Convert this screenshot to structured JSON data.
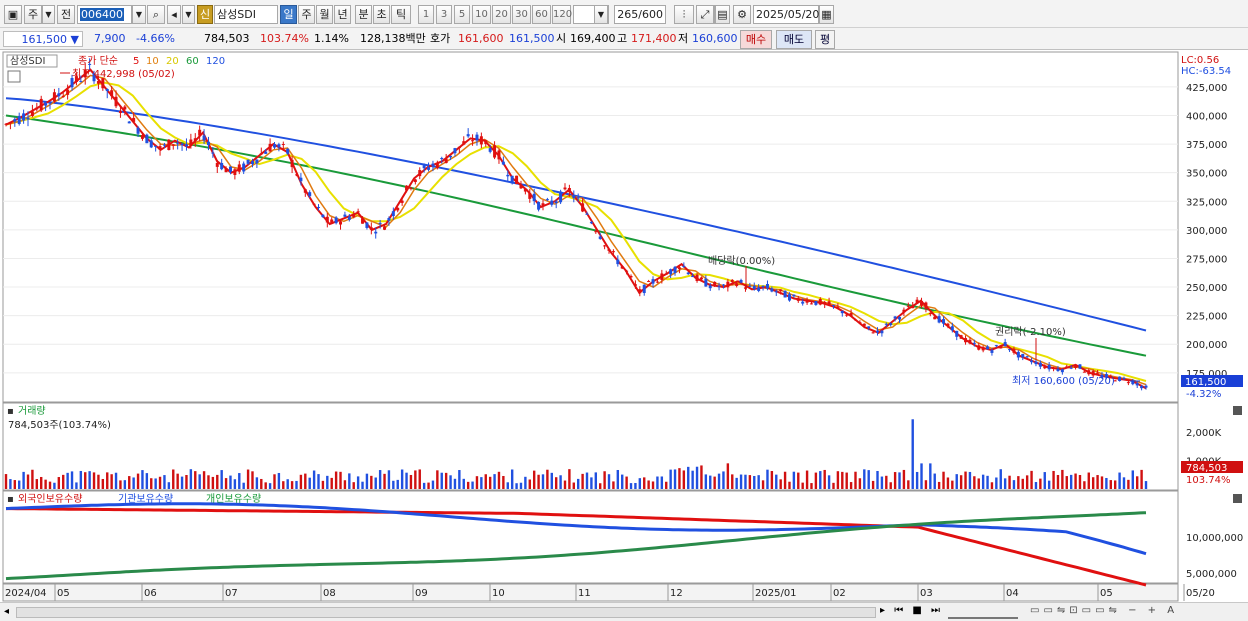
{
  "toolbar": {
    "period_main": "주",
    "prev_label": "전",
    "stock_code": "006400",
    "stock_name": "삼성SDI",
    "sin_label": "신",
    "periods": [
      "일",
      "주",
      "월",
      "년",
      "분",
      "초",
      "틱"
    ],
    "intervals": [
      "1",
      "3",
      "5",
      "10",
      "20",
      "30",
      "60",
      "120"
    ],
    "count": "265",
    "count_total": "/600",
    "date": "2025/05/20"
  },
  "info": {
    "price": "161,500",
    "change": "7,900",
    "change_pct": "-4.66%",
    "volume": "784,503",
    "volume_ratio": "103.74%",
    "turnover_pct": "1.14%",
    "amount": "128,138백만",
    "quote_label": "호가",
    "ask": "161,600",
    "bid": "161,500",
    "open_label": "시",
    "open": "169,400",
    "high_label": "고",
    "high": "171,400",
    "low_label": "저",
    "low": "160,600",
    "buy_label": "매수",
    "sell_label": "매도",
    "eval_label": "평"
  },
  "price_pane": {
    "stock_name": "삼성SDI",
    "ma_title": "종가 단순",
    "ma_periods": [
      "5",
      "10",
      "20",
      "60",
      "120"
    ],
    "ma_colors": [
      "#e01010",
      "#e07a10",
      "#e8e000",
      "#1a9a3a",
      "#2050e0"
    ],
    "lc": "LC:0.56",
    "hc": "HC:-63.54",
    "y_ticks": [
      "425,000",
      "400,000",
      "375,000",
      "350,000",
      "325,000",
      "300,000",
      "275,000",
      "250,000",
      "225,000",
      "200,000",
      "175,000"
    ],
    "last_price": "161,500",
    "last_pct": "-4.32%",
    "max_label": "최고 442,998 (05/02)",
    "min_label": "최저 160,600 (05/20)",
    "dividend_label": "배당락(0.00%)",
    "rights_label": "권리락(-2.10%)"
  },
  "volume_pane": {
    "title": "거래량",
    "value": "784,503주(103.74%)",
    "y_ticks": [
      "2,000K",
      "1,000K"
    ],
    "last_value": "784,503",
    "last_pct": "103.74%"
  },
  "holding_pane": {
    "series": [
      "외국인보유수량",
      "기관보유수량",
      "개인보유수량"
    ],
    "colors": [
      "#e01010",
      "#2050e0",
      "#2a8a4a"
    ],
    "y_ticks": [
      "10,000,000",
      "5,000,000"
    ]
  },
  "x_axis": [
    "2024/04",
    "05",
    "06",
    "07",
    "08",
    "09",
    "10",
    "11",
    "12",
    "2025/01",
    "02",
    "03",
    "04",
    "05",
    "05/20"
  ],
  "chart_data": {
    "type": "candlestick",
    "y_axis": [
      160000,
      445000
    ],
    "notes": "weekly-like daily candles with moving averages; approximate closes",
    "closes": [
      392000,
      398000,
      405000,
      412000,
      420000,
      430000,
      440000,
      425000,
      410000,
      395000,
      380000,
      370000,
      378000,
      372000,
      385000,
      360000,
      350000,
      355000,
      365000,
      375000,
      368000,
      340000,
      320000,
      305000,
      310000,
      315000,
      300000,
      305000,
      325000,
      345000,
      355000,
      360000,
      370000,
      380000,
      378000,
      365000,
      345000,
      335000,
      320000,
      325000,
      335000,
      320000,
      300000,
      280000,
      265000,
      245000,
      255000,
      262000,
      270000,
      258000,
      252000,
      250000,
      255000,
      248000,
      250000,
      245000,
      240000,
      238000,
      236000,
      232000,
      225000,
      215000,
      210000,
      220000,
      230000,
      238000,
      225000,
      215000,
      205000,
      198000,
      195000,
      200000,
      190000,
      185000,
      180000,
      178000,
      182000,
      175000,
      172000,
      170000,
      168000,
      161500
    ],
    "ma120_end": 212000,
    "ma60_end": 190000,
    "volume_max_k": 2500
  }
}
